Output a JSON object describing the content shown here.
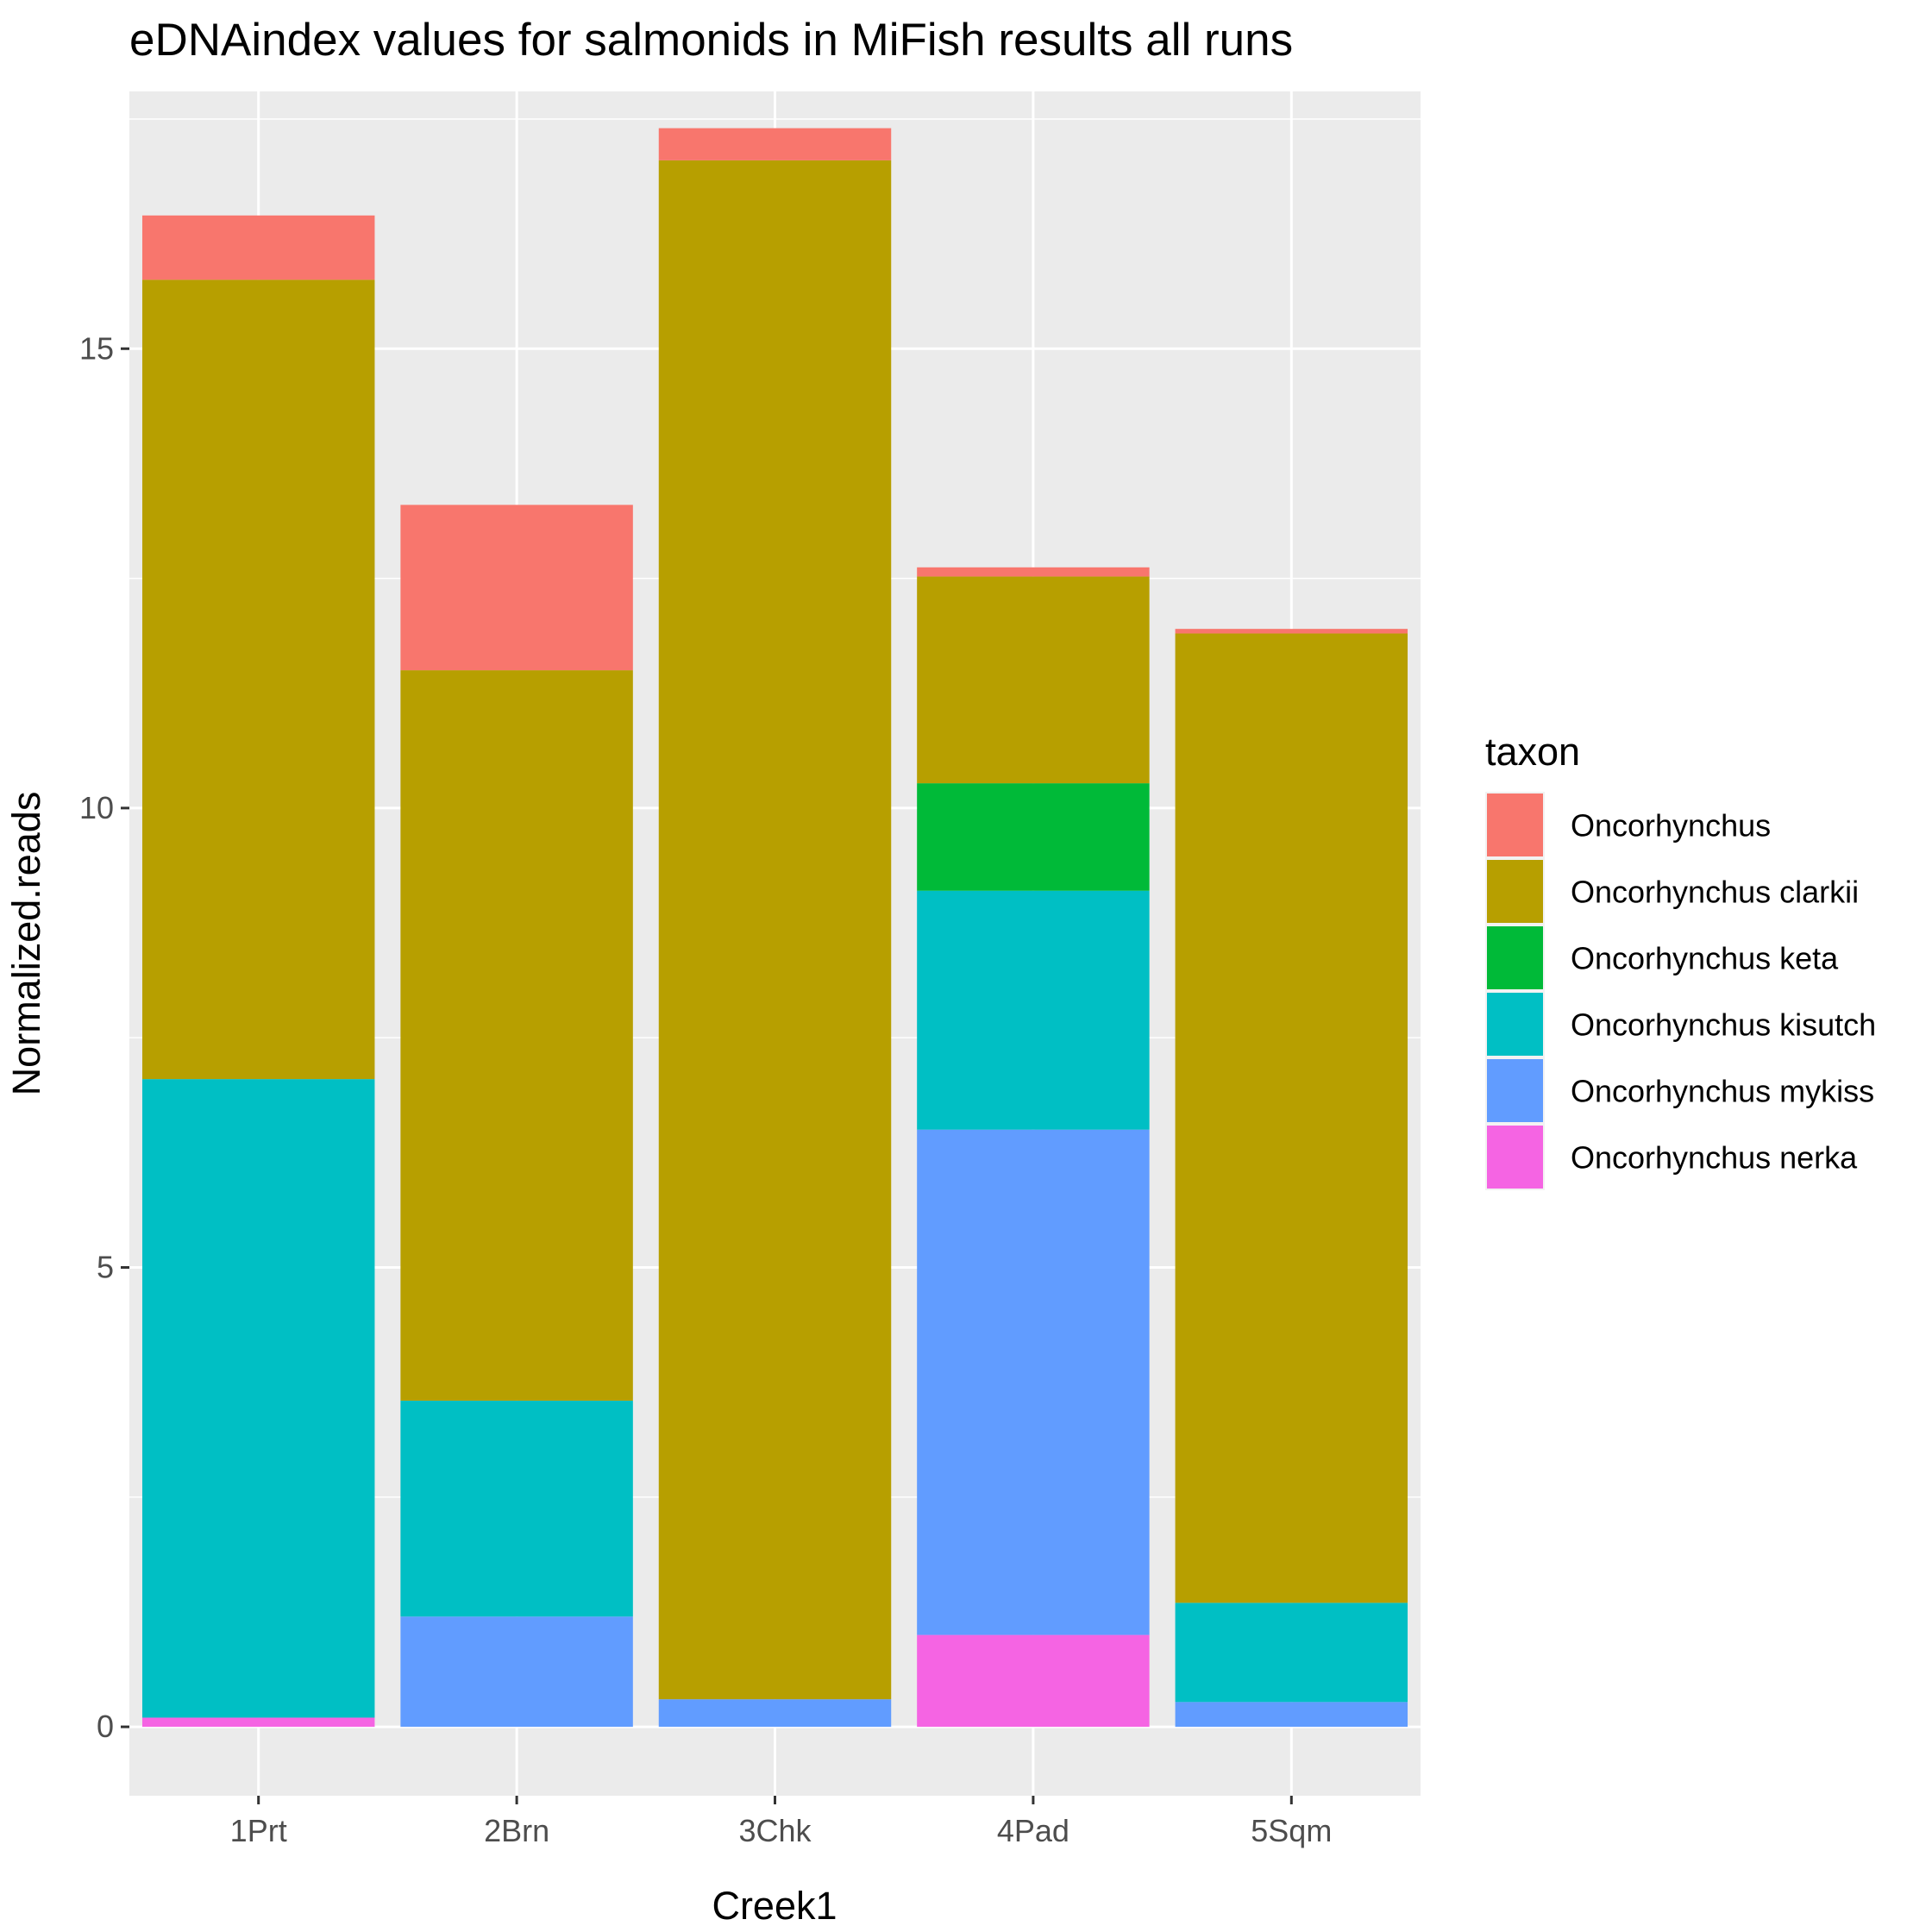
{
  "chart_data": {
    "type": "bar",
    "stacked": true,
    "title": "eDNAindex values for salmonids in MiFish results all runs",
    "xlabel": "Creek1",
    "ylabel": "Normalized.reads",
    "ylim": [
      -0.75,
      17.8
    ],
    "yticks": [
      0,
      5,
      10,
      15
    ],
    "ytick_labels": [
      "0",
      "5",
      "10",
      "15"
    ],
    "grid": true,
    "legend_position": "right",
    "legend_title": "taxon",
    "categories": [
      "1Prt",
      "2Brn",
      "3Chk",
      "4Pad",
      "5Sqm"
    ],
    "series": [
      {
        "name": "Oncorhynchus nerka",
        "color": "#F564E3",
        "values": [
          0.1,
          0,
          0,
          1.0,
          0
        ]
      },
      {
        "name": "Oncorhynchus mykiss",
        "color": "#619CFF",
        "values": [
          0,
          1.2,
          0.3,
          5.5,
          0.27
        ]
      },
      {
        "name": "Oncorhynchus kisutch",
        "color": "#00BFC4",
        "values": [
          6.95,
          2.35,
          0,
          2.6,
          1.08
        ]
      },
      {
        "name": "Oncorhynchus keta",
        "color": "#00BA38",
        "values": [
          0,
          0,
          0,
          1.17,
          0
        ]
      },
      {
        "name": "Oncorhynchus clarkii",
        "color": "#B79F00",
        "values": [
          8.7,
          7.95,
          16.75,
          2.25,
          10.55
        ]
      },
      {
        "name": "Oncorhynchus",
        "color": "#F8766D",
        "values": [
          0.7,
          1.8,
          0.35,
          0.1,
          0.05
        ]
      }
    ],
    "legend_order": [
      "Oncorhynchus",
      "Oncorhynchus clarkii",
      "Oncorhynchus keta",
      "Oncorhynchus kisutch",
      "Oncorhynchus mykiss",
      "Oncorhynchus nerka"
    ]
  }
}
